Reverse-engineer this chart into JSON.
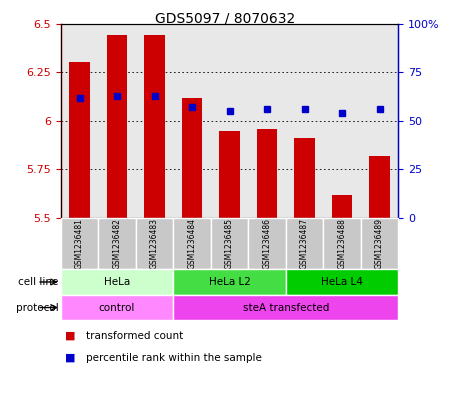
{
  "title": "GDS5097 / 8070632",
  "samples": [
    "GSM1236481",
    "GSM1236482",
    "GSM1236483",
    "GSM1236484",
    "GSM1236485",
    "GSM1236486",
    "GSM1236487",
    "GSM1236488",
    "GSM1236489"
  ],
  "transformed_count": [
    6.3,
    6.44,
    6.44,
    6.12,
    5.95,
    5.96,
    5.91,
    5.62,
    5.82
  ],
  "bar_bottom": 5.5,
  "percentile_rank": [
    62,
    63,
    63,
    57,
    55,
    56,
    56,
    54,
    56
  ],
  "ylim_left": [
    5.5,
    6.5
  ],
  "ylim_right": [
    0,
    100
  ],
  "yticks_left": [
    5.5,
    5.75,
    6.0,
    6.25,
    6.5
  ],
  "ytick_labels_left": [
    "5.5",
    "5.75",
    "6",
    "6.25",
    "6.5"
  ],
  "yticks_right": [
    0,
    25,
    50,
    75,
    100
  ],
  "ytick_labels_right": [
    "0",
    "25",
    "50",
    "75",
    "100%"
  ],
  "bar_color": "#cc0000",
  "dot_color": "#0000cc",
  "cell_line_groups": [
    {
      "label": "HeLa",
      "start": 0,
      "end": 3,
      "color": "#ccffcc"
    },
    {
      "label": "HeLa L2",
      "start": 3,
      "end": 6,
      "color": "#44dd44"
    },
    {
      "label": "HeLa L4",
      "start": 6,
      "end": 9,
      "color": "#00cc00"
    }
  ],
  "protocol_groups": [
    {
      "label": "control",
      "start": 0,
      "end": 3,
      "color": "#ff88ff"
    },
    {
      "label": "steA transfected",
      "start": 3,
      "end": 9,
      "color": "#ee44ee"
    }
  ],
  "legend_items": [
    {
      "label": "transformed count",
      "color": "#cc0000"
    },
    {
      "label": "percentile rank within the sample",
      "color": "#0000cc"
    }
  ],
  "plot_bg": "#e8e8e8",
  "label_color_left": "#cc0000",
  "label_color_right": "#0000cc",
  "sample_box_color": "#c8c8c8"
}
